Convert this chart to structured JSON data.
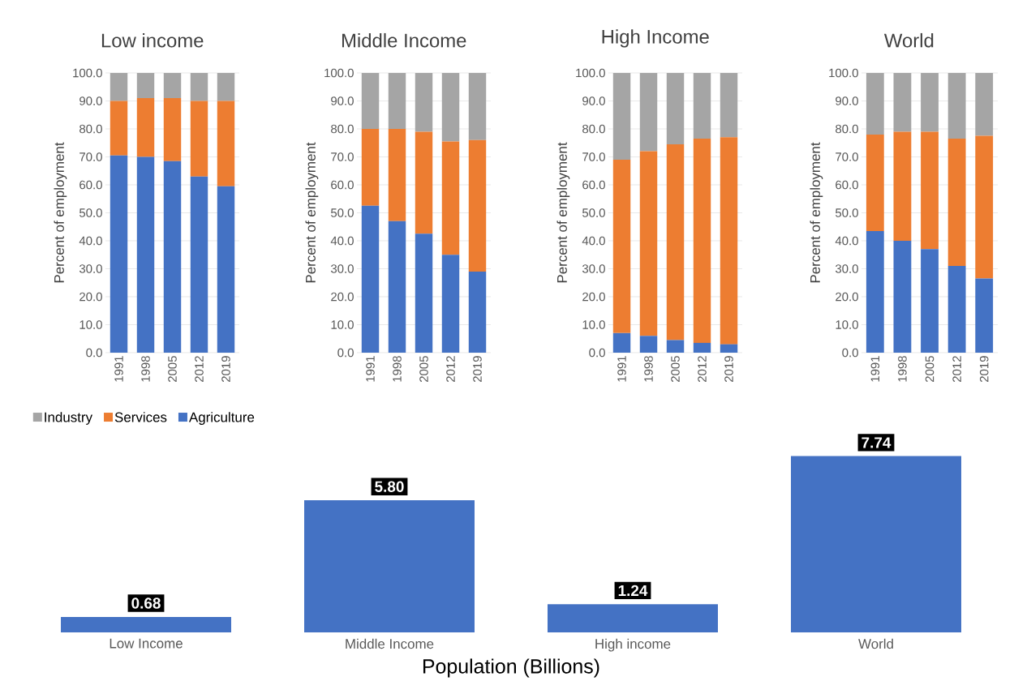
{
  "chart_data": [
    {
      "type": "bar",
      "stacked": true,
      "title": "Low income",
      "ylabel": "Percent of employment",
      "categories": [
        "1991",
        "1998",
        "2005",
        "2012",
        "2019"
      ],
      "ylim": [
        0,
        100
      ],
      "yticks": [
        {
          "value": 0,
          "label": "0.0"
        },
        {
          "value": 10,
          "label": "10.0"
        },
        {
          "value": 20,
          "label": "20.0"
        },
        {
          "value": 30,
          "label": "30.0"
        },
        {
          "value": 40,
          "label": "40.0"
        },
        {
          "value": 50,
          "label": "50.0"
        },
        {
          "value": 60,
          "label": "60.0"
        },
        {
          "value": 70,
          "label": "70.0"
        },
        {
          "value": 80,
          "label": "80.0"
        },
        {
          "value": 90,
          "label": "90.0"
        },
        {
          "value": 100,
          "label": "100.0"
        }
      ],
      "grid": "y",
      "legend": "bottom",
      "series": [
        {
          "name": "Agriculture",
          "color": "#4472c4",
          "values": [
            70.5,
            70,
            68.5,
            63,
            59.5
          ]
        },
        {
          "name": "Services",
          "color": "#ed7d31",
          "values": [
            19.5,
            21,
            22.5,
            27,
            30.5
          ]
        },
        {
          "name": "Industry",
          "color": "#a5a5a5",
          "values": [
            10,
            9,
            9,
            10,
            10
          ]
        }
      ]
    },
    {
      "type": "bar",
      "stacked": true,
      "title": "Middle Income",
      "ylabel": "Percent of employment",
      "categories": [
        "1991",
        "1998",
        "2005",
        "2012",
        "2019"
      ],
      "ylim": [
        0,
        100
      ],
      "yticks": [
        {
          "value": 0,
          "label": "0.0"
        },
        {
          "value": 10,
          "label": "10.0"
        },
        {
          "value": 20,
          "label": "20.0"
        },
        {
          "value": 30,
          "label": "30.0"
        },
        {
          "value": 40,
          "label": "40.0"
        },
        {
          "value": 50,
          "label": "50.0"
        },
        {
          "value": 60,
          "label": "60.0"
        },
        {
          "value": 70,
          "label": "70.0"
        },
        {
          "value": 80,
          "label": "80.0"
        },
        {
          "value": 90,
          "label": "90.0"
        },
        {
          "value": 100,
          "label": "100.0"
        }
      ],
      "grid": "y",
      "series": [
        {
          "color": "#4472c4",
          "values": [
            52.5,
            47,
            42.5,
            35,
            29
          ]
        },
        {
          "color": "#ed7d31",
          "values": [
            27.5,
            33,
            36.5,
            40.5,
            47
          ]
        },
        {
          "color": "#a5a5a5",
          "values": [
            20,
            20,
            21,
            24.5,
            24
          ]
        }
      ]
    },
    {
      "type": "bar",
      "stacked": true,
      "title": "High Income",
      "ylabel": "Percent of employment",
      "categories": [
        "1991",
        "1998",
        "2005",
        "2012",
        "2019"
      ],
      "ylim": [
        0,
        100
      ],
      "yticks": [
        {
          "value": 0,
          "label": "0.0"
        },
        {
          "value": 10,
          "label": "10.0"
        },
        {
          "value": 20,
          "label": "20.0"
        },
        {
          "value": 30,
          "label": "30.0"
        },
        {
          "value": 40,
          "label": "40.0"
        },
        {
          "value": 50,
          "label": "50.0"
        },
        {
          "value": 60,
          "label": "60.0"
        },
        {
          "value": 70,
          "label": "70.0"
        },
        {
          "value": 80,
          "label": "80.0"
        },
        {
          "value": 90,
          "label": "90.0"
        },
        {
          "value": 100,
          "label": "100.0"
        }
      ],
      "grid": "y",
      "series": [
        {
          "color": "#4472c4",
          "values": [
            7,
            6,
            4.5,
            3.5,
            3
          ]
        },
        {
          "color": "#ed7d31",
          "values": [
            62,
            66,
            70,
            73,
            74
          ]
        },
        {
          "color": "#a5a5a5",
          "values": [
            31,
            28,
            25.5,
            23.5,
            23
          ]
        }
      ]
    },
    {
      "type": "bar",
      "stacked": true,
      "title": "World",
      "ylabel": "Percent of employment",
      "categories": [
        "1991",
        "1998",
        "2005",
        "2012",
        "2019"
      ],
      "ylim": [
        0,
        100
      ],
      "yticks": [
        {
          "value": 0,
          "label": "0.0"
        },
        {
          "value": 10,
          "label": "10.0"
        },
        {
          "value": 20,
          "label": "20.0"
        },
        {
          "value": 30,
          "label": "30.0"
        },
        {
          "value": 40,
          "label": "40.0"
        },
        {
          "value": 50,
          "label": "50.0"
        },
        {
          "value": 60,
          "label": "60.0"
        },
        {
          "value": 70,
          "label": "70.0"
        },
        {
          "value": 80,
          "label": "80.0"
        },
        {
          "value": 90,
          "label": "90.0"
        },
        {
          "value": 100,
          "label": "100.0"
        }
      ],
      "grid": "y",
      "series": [
        {
          "color": "#4472c4",
          "values": [
            43.5,
            40,
            37,
            31,
            26.5
          ]
        },
        {
          "color": "#ed7d31",
          "values": [
            34.5,
            39,
            42,
            45.5,
            51
          ]
        },
        {
          "color": "#a5a5a5",
          "values": [
            22,
            21,
            21,
            23.5,
            22.5
          ]
        }
      ]
    },
    {
      "type": "bar",
      "xlabel": "Population (Billions)",
      "categories": [
        "Low Income",
        "Middle Income",
        "High income",
        "World"
      ],
      "values": [
        0.68,
        5.8,
        1.24,
        7.74
      ],
      "value_labels": [
        "0.68",
        "5.80",
        "1.24",
        "7.74"
      ],
      "color": "#4472c4"
    }
  ]
}
